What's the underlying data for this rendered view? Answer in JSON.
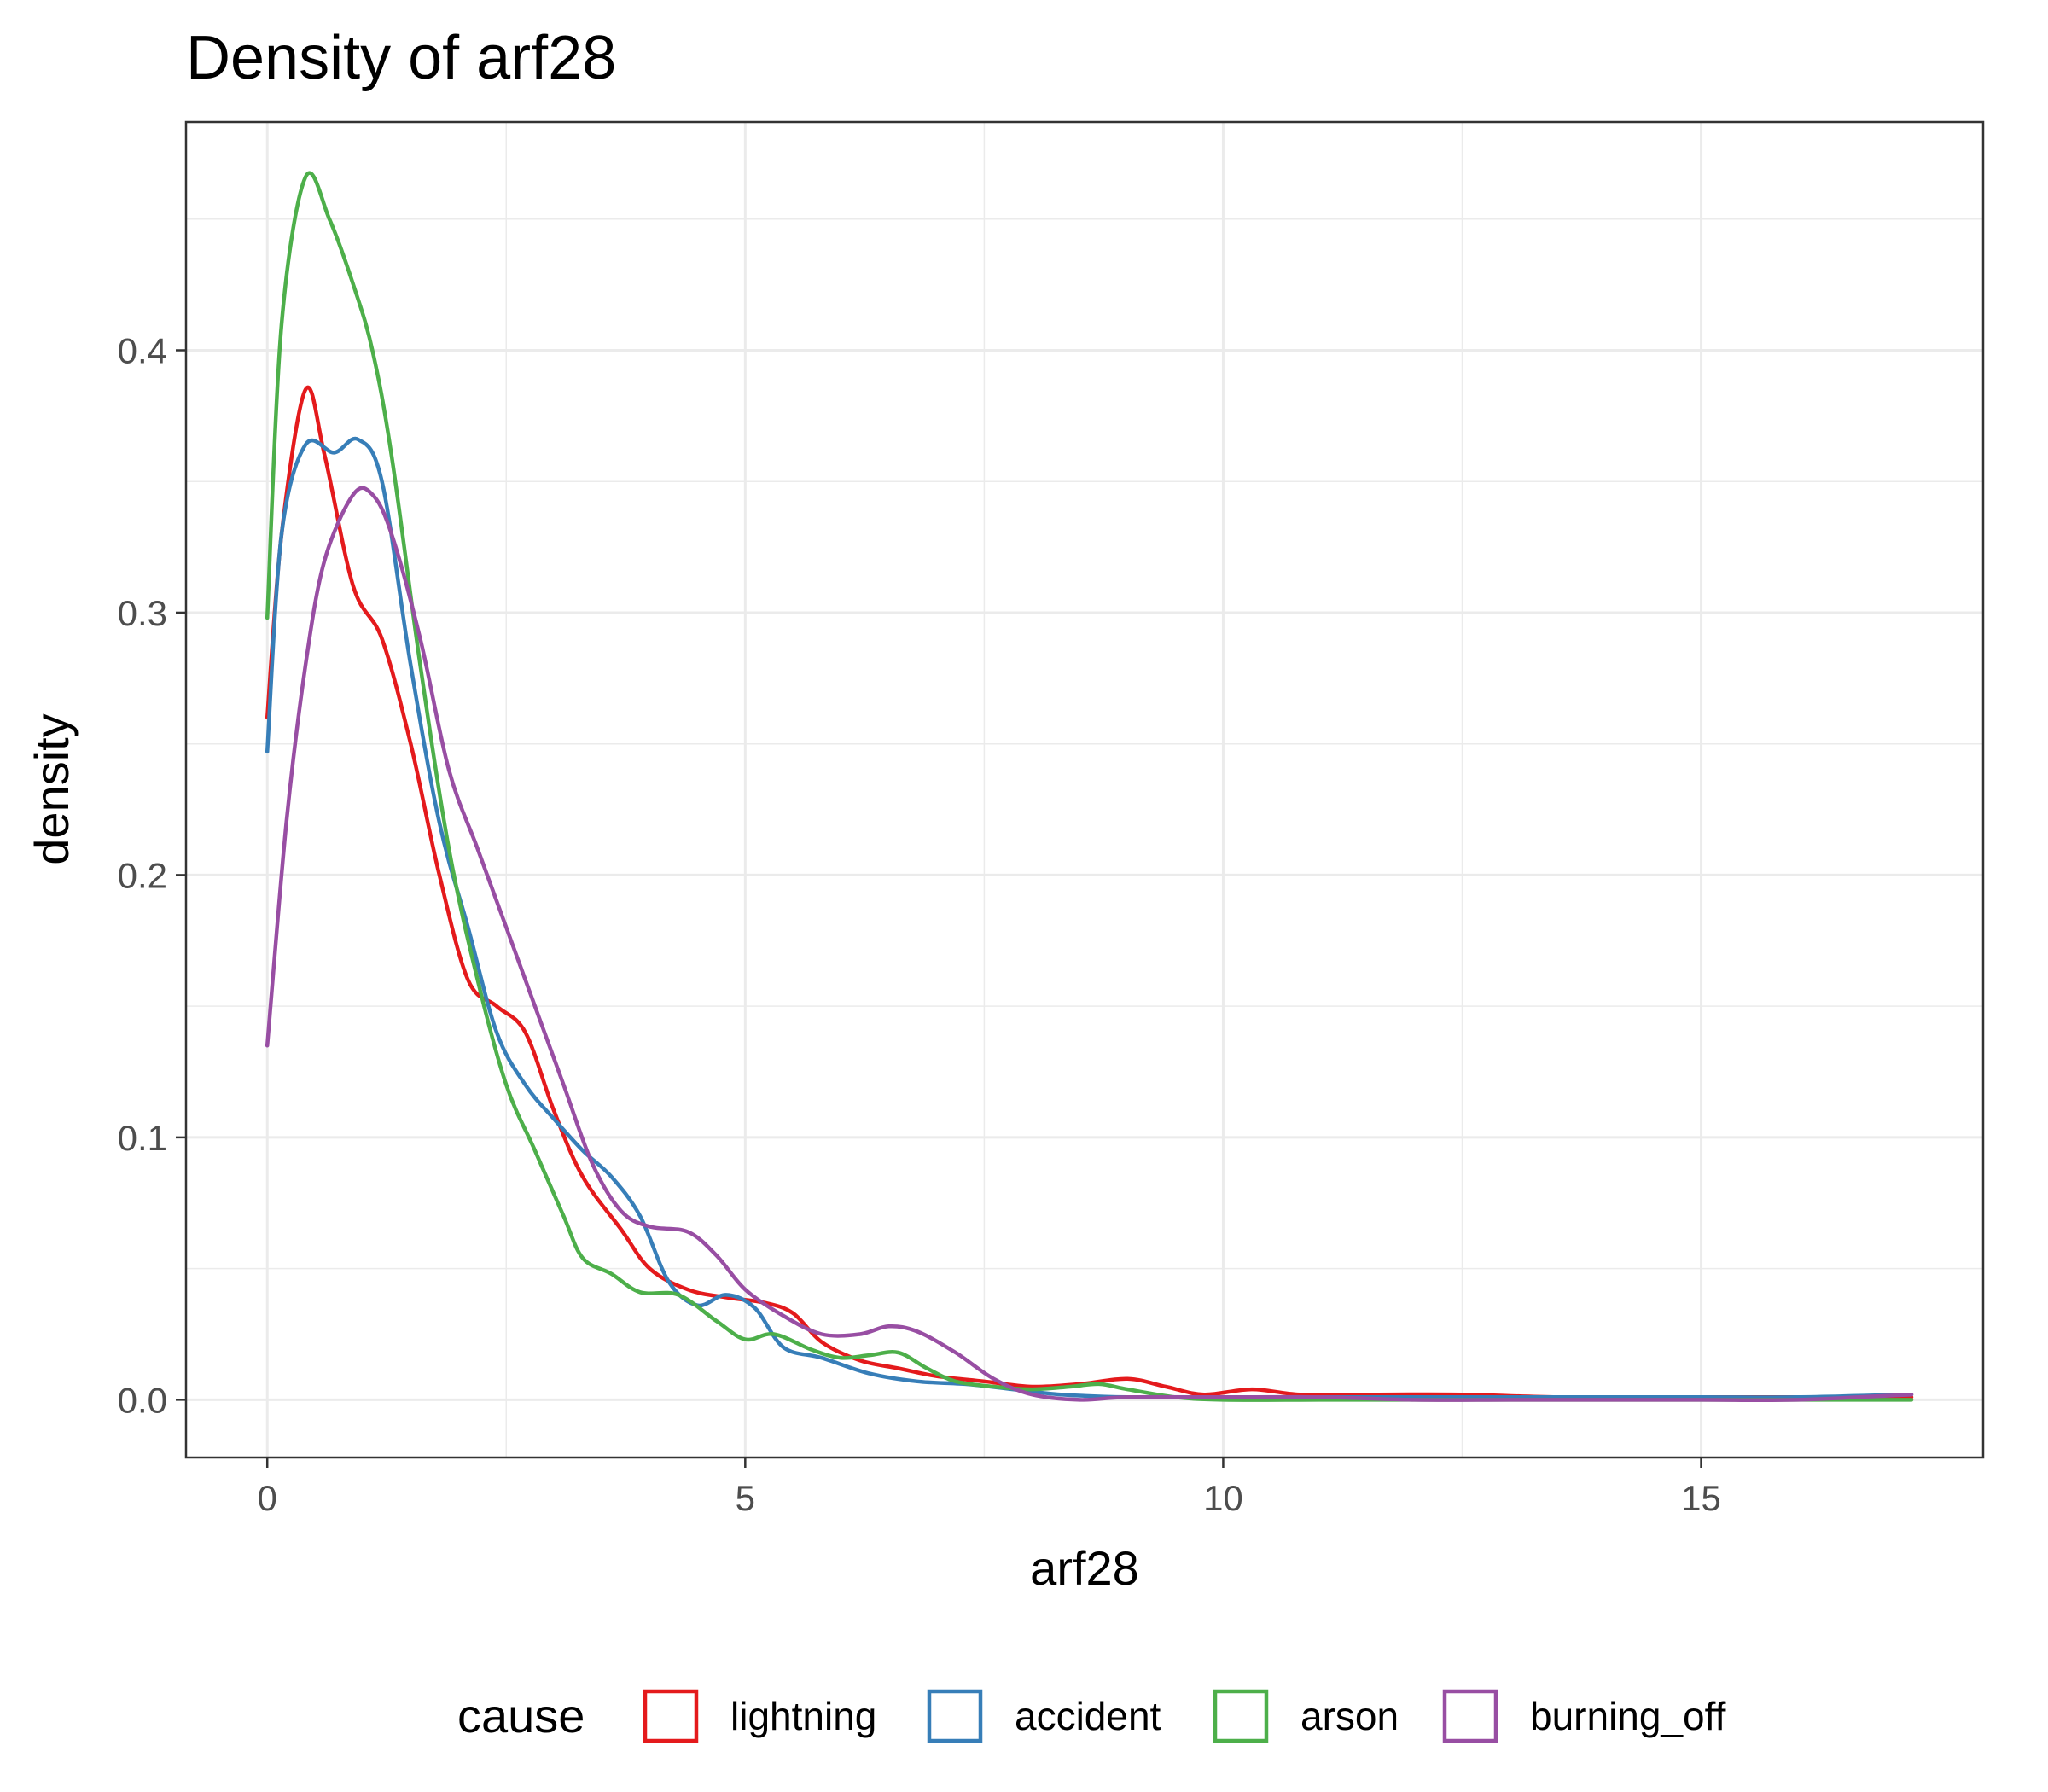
{
  "chart_data": {
    "type": "line",
    "title": "Density of arf28",
    "xlabel": "arf28",
    "ylabel": "density",
    "xlim": [
      -0.85,
      17.95
    ],
    "ylim": [
      -0.022,
      0.487
    ],
    "x_ticks": [
      0,
      5,
      10,
      15
    ],
    "x_tick_labels": [
      "0",
      "5",
      "10",
      "15"
    ],
    "y_ticks": [
      0.0,
      0.1,
      0.2,
      0.3,
      0.4
    ],
    "y_tick_labels": [
      "0.0",
      "0.1",
      "0.2",
      "0.3",
      "0.4"
    ],
    "grid": true,
    "legend": {
      "title": "cause",
      "position": "bottom"
    },
    "series": [
      {
        "name": "lightning",
        "color": "#e41a1c",
        "points": [
          [
            0,
            0.26
          ],
          [
            0.15,
            0.33
          ],
          [
            0.4,
            0.385
          ],
          [
            0.6,
            0.36
          ],
          [
            0.9,
            0.31
          ],
          [
            1.2,
            0.29
          ],
          [
            1.5,
            0.25
          ],
          [
            1.8,
            0.2
          ],
          [
            2.1,
            0.16
          ],
          [
            2.4,
            0.15
          ],
          [
            2.7,
            0.14
          ],
          [
            3.0,
            0.11
          ],
          [
            3.3,
            0.085
          ],
          [
            3.7,
            0.065
          ],
          [
            4.0,
            0.05
          ],
          [
            4.4,
            0.042
          ],
          [
            4.8,
            0.039
          ],
          [
            5.2,
            0.037
          ],
          [
            5.5,
            0.033
          ],
          [
            5.8,
            0.022
          ],
          [
            6.2,
            0.015
          ],
          [
            6.6,
            0.012
          ],
          [
            7.0,
            0.009
          ],
          [
            7.5,
            0.007
          ],
          [
            8.0,
            0.005
          ],
          [
            8.5,
            0.006
          ],
          [
            9.0,
            0.008
          ],
          [
            9.4,
            0.005
          ],
          [
            9.8,
            0.002
          ],
          [
            10.3,
            0.004
          ],
          [
            10.8,
            0.002
          ],
          [
            11.5,
            0.002
          ],
          [
            12.5,
            0.002
          ],
          [
            13.5,
            0.001
          ],
          [
            15,
            0.001
          ],
          [
            16,
            0.001
          ],
          [
            17.2,
            0.001
          ]
        ]
      },
      {
        "name": "accident",
        "color": "#377eb8",
        "points": [
          [
            0,
            0.247
          ],
          [
            0.15,
            0.33
          ],
          [
            0.4,
            0.364
          ],
          [
            0.7,
            0.361
          ],
          [
            0.95,
            0.366
          ],
          [
            1.2,
            0.35
          ],
          [
            1.5,
            0.28
          ],
          [
            1.8,
            0.22
          ],
          [
            2.1,
            0.18
          ],
          [
            2.4,
            0.14
          ],
          [
            2.7,
            0.12
          ],
          [
            3.0,
            0.107
          ],
          [
            3.3,
            0.095
          ],
          [
            3.6,
            0.085
          ],
          [
            3.9,
            0.07
          ],
          [
            4.2,
            0.045
          ],
          [
            4.5,
            0.036
          ],
          [
            4.8,
            0.04
          ],
          [
            5.1,
            0.035
          ],
          [
            5.4,
            0.02
          ],
          [
            5.8,
            0.016
          ],
          [
            6.3,
            0.01
          ],
          [
            6.8,
            0.007
          ],
          [
            7.3,
            0.006
          ],
          [
            7.8,
            0.004
          ],
          [
            8.3,
            0.002
          ],
          [
            9,
            0.001
          ],
          [
            10,
            0.001
          ],
          [
            11,
            0.001
          ],
          [
            12,
            0.001
          ],
          [
            13,
            0.001
          ],
          [
            14,
            0.001
          ],
          [
            15,
            0.001
          ],
          [
            16,
            0.001
          ],
          [
            17.2,
            0.002
          ]
        ]
      },
      {
        "name": "arson",
        "color": "#4daf4a",
        "points": [
          [
            0,
            0.298
          ],
          [
            0.15,
            0.41
          ],
          [
            0.4,
            0.466
          ],
          [
            0.65,
            0.45
          ],
          [
            0.9,
            0.425
          ],
          [
            1.1,
            0.4
          ],
          [
            1.3,
            0.36
          ],
          [
            1.6,
            0.28
          ],
          [
            1.9,
            0.21
          ],
          [
            2.2,
            0.16
          ],
          [
            2.5,
            0.12
          ],
          [
            2.8,
            0.095
          ],
          [
            3.1,
            0.07
          ],
          [
            3.3,
            0.054
          ],
          [
            3.6,
            0.048
          ],
          [
            3.9,
            0.041
          ],
          [
            4.3,
            0.04
          ],
          [
            4.7,
            0.03
          ],
          [
            5.0,
            0.023
          ],
          [
            5.3,
            0.025
          ],
          [
            5.7,
            0.019
          ],
          [
            6.0,
            0.016
          ],
          [
            6.3,
            0.017
          ],
          [
            6.6,
            0.018
          ],
          [
            6.9,
            0.012
          ],
          [
            7.2,
            0.007
          ],
          [
            7.6,
            0.005
          ],
          [
            8.0,
            0.004
          ],
          [
            8.4,
            0.005
          ],
          [
            8.7,
            0.006
          ],
          [
            9.0,
            0.004
          ],
          [
            9.5,
            0.001
          ],
          [
            10,
            0.0
          ],
          [
            11,
            0.0
          ],
          [
            12,
            0.0
          ],
          [
            13,
            0.0
          ],
          [
            14,
            0.0
          ],
          [
            15,
            0.0
          ],
          [
            16,
            0.0
          ],
          [
            17.2,
            0.0
          ]
        ]
      },
      {
        "name": "burning_off",
        "color": "#984ea3",
        "points": [
          [
            0,
            0.135
          ],
          [
            0.2,
            0.22
          ],
          [
            0.4,
            0.28
          ],
          [
            0.6,
            0.32
          ],
          [
            0.9,
            0.345
          ],
          [
            1.1,
            0.345
          ],
          [
            1.3,
            0.33
          ],
          [
            1.6,
            0.29
          ],
          [
            1.9,
            0.24
          ],
          [
            2.2,
            0.21
          ],
          [
            2.5,
            0.18
          ],
          [
            2.8,
            0.15
          ],
          [
            3.1,
            0.12
          ],
          [
            3.4,
            0.09
          ],
          [
            3.7,
            0.072
          ],
          [
            4.0,
            0.066
          ],
          [
            4.4,
            0.064
          ],
          [
            4.7,
            0.055
          ],
          [
            5.0,
            0.042
          ],
          [
            5.4,
            0.032
          ],
          [
            5.8,
            0.025
          ],
          [
            6.2,
            0.025
          ],
          [
            6.5,
            0.028
          ],
          [
            6.8,
            0.026
          ],
          [
            7.2,
            0.018
          ],
          [
            7.6,
            0.008
          ],
          [
            8.0,
            0.002
          ],
          [
            8.5,
            0.0
          ],
          [
            9,
            0.001
          ],
          [
            10,
            0.001
          ],
          [
            11,
            0.001
          ],
          [
            12,
            0.0
          ],
          [
            13,
            0.0
          ],
          [
            14,
            0.0
          ],
          [
            15,
            0.0
          ],
          [
            16,
            0.0
          ],
          [
            17.2,
            0.002
          ]
        ]
      }
    ]
  }
}
